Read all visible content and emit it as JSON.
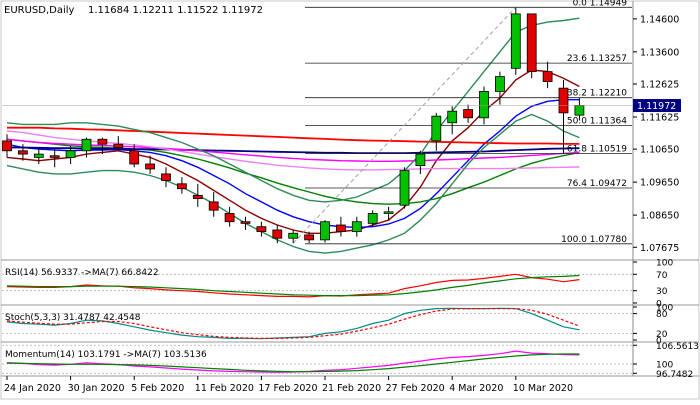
{
  "header": {
    "symbol_label": "EURUSD,Daily",
    "ohlc_label": "1.11684 1.12211 1.11522 1.11972"
  },
  "chart_data": [
    {
      "type": "candlestick",
      "symbol": "EURUSD",
      "timeframe": "Daily",
      "ylim": [
        1.0735,
        1.1505
      ],
      "y_ticks": [
        {
          "value": 1.146,
          "label": "1.14600"
        },
        {
          "value": 1.136,
          "label": "1.13600"
        },
        {
          "value": 1.12625,
          "label": "1.12625"
        },
        {
          "value": 1.11625,
          "label": "1.11625"
        },
        {
          "value": 1.1065,
          "label": "1.10650"
        },
        {
          "value": 1.0965,
          "label": "1.09650"
        },
        {
          "value": 1.0865,
          "label": "1.08650"
        },
        {
          "value": 1.07675,
          "label": "1.07675"
        }
      ],
      "x_ticks": [
        {
          "index": 0,
          "label": "24 Jan 2020"
        },
        {
          "index": 4,
          "label": "30 Jan 2020"
        },
        {
          "index": 8,
          "label": "5 Feb 2020"
        },
        {
          "index": 12,
          "label": "11 Feb 2020"
        },
        {
          "index": 16,
          "label": "17 Feb 2020"
        },
        {
          "index": 20,
          "label": "21 Feb 2020"
        },
        {
          "index": 24,
          "label": "27 Feb 2020"
        },
        {
          "index": 28,
          "label": "4 Mar 2020"
        },
        {
          "index": 32,
          "label": "10 Mar 2020"
        }
      ],
      "current_price": {
        "value": 1.11972,
        "label": "1.11972",
        "color": "#000080"
      },
      "candles": [
        {
          "o": 1.109,
          "h": 1.111,
          "l": 1.104,
          "c": 1.106
        },
        {
          "o": 1.106,
          "h": 1.108,
          "l": 1.103,
          "c": 1.105
        },
        {
          "o": 1.104,
          "h": 1.107,
          "l": 1.102,
          "c": 1.105
        },
        {
          "o": 1.1045,
          "h": 1.1065,
          "l": 1.101,
          "c": 1.104
        },
        {
          "o": 1.104,
          "h": 1.1075,
          "l": 1.102,
          "c": 1.106
        },
        {
          "o": 1.106,
          "h": 1.11,
          "l": 1.104,
          "c": 1.1095
        },
        {
          "o": 1.1095,
          "h": 1.11,
          "l": 1.105,
          "c": 1.108
        },
        {
          "o": 1.108,
          "h": 1.1105,
          "l": 1.106,
          "c": 1.107
        },
        {
          "o": 1.106,
          "h": 1.108,
          "l": 1.101,
          "c": 1.102
        },
        {
          "o": 1.102,
          "h": 1.1045,
          "l": 1.099,
          "c": 1.1005
        },
        {
          "o": 1.099,
          "h": 1.101,
          "l": 1.095,
          "c": 1.097
        },
        {
          "o": 1.096,
          "h": 1.098,
          "l": 1.093,
          "c": 1.0945
        },
        {
          "o": 1.0925,
          "h": 1.096,
          "l": 1.089,
          "c": 1.0915
        },
        {
          "o": 1.0905,
          "h": 1.0935,
          "l": 1.086,
          "c": 1.088
        },
        {
          "o": 1.087,
          "h": 1.089,
          "l": 1.083,
          "c": 1.0845
        },
        {
          "o": 1.0845,
          "h": 1.086,
          "l": 1.082,
          "c": 1.084
        },
        {
          "o": 1.083,
          "h": 1.0845,
          "l": 1.08,
          "c": 1.0815
        },
        {
          "o": 1.082,
          "h": 1.0835,
          "l": 1.078,
          "c": 1.0795
        },
        {
          "o": 1.0795,
          "h": 1.082,
          "l": 1.078,
          "c": 1.081
        },
        {
          "o": 1.0805,
          "h": 1.0815,
          "l": 1.078,
          "c": 1.079
        },
        {
          "o": 1.079,
          "h": 1.085,
          "l": 1.0782,
          "c": 1.0845
        },
        {
          "o": 1.0835,
          "h": 1.086,
          "l": 1.08,
          "c": 1.0815
        },
        {
          "o": 1.0815,
          "h": 1.086,
          "l": 1.08,
          "c": 1.0845
        },
        {
          "o": 1.084,
          "h": 1.088,
          "l": 1.083,
          "c": 1.087
        },
        {
          "o": 1.087,
          "h": 1.089,
          "l": 1.085,
          "c": 1.0875
        },
        {
          "o": 1.0895,
          "h": 1.101,
          "l": 1.0885,
          "c": 1.1
        },
        {
          "o": 1.1015,
          "h": 1.106,
          "l": 1.099,
          "c": 1.105
        },
        {
          "o": 1.109,
          "h": 1.1175,
          "l": 1.106,
          "c": 1.1165
        },
        {
          "o": 1.1145,
          "h": 1.1195,
          "l": 1.111,
          "c": 1.118
        },
        {
          "o": 1.1185,
          "h": 1.12,
          "l": 1.1145,
          "c": 1.116
        },
        {
          "o": 1.116,
          "h": 1.1255,
          "l": 1.114,
          "c": 1.124
        },
        {
          "o": 1.124,
          "h": 1.13,
          "l": 1.12,
          "c": 1.1285
        },
        {
          "o": 1.131,
          "h": 1.1495,
          "l": 1.129,
          "c": 1.1475
        },
        {
          "o": 1.1475,
          "h": 1.1475,
          "l": 1.128,
          "c": 1.13
        },
        {
          "o": 1.13,
          "h": 1.133,
          "l": 1.125,
          "c": 1.127
        },
        {
          "o": 1.125,
          "h": 1.1275,
          "l": 1.105,
          "c": 1.1175
        },
        {
          "o": 1.1168,
          "h": 1.1221,
          "l": 1.1152,
          "c": 1.1197
        }
      ],
      "fibonacci": {
        "color": "#222222",
        "levels": [
          {
            "value": 1.14949,
            "label": "0.0 1.14949"
          },
          {
            "value": 1.13257,
            "label": "23.6 1.13257"
          },
          {
            "value": 1.1221,
            "label": "38.2 1.12210"
          },
          {
            "value": 1.11364,
            "label": "50.0 1.11364"
          },
          {
            "value": 1.10519,
            "label": "61.8 1.10519"
          },
          {
            "value": 1.09472,
            "label": "76.4 1.09472"
          },
          {
            "value": 1.0778,
            "label": "100.0 1.07780"
          }
        ]
      },
      "moving_averages": [
        {
          "color": "#8b0000",
          "values": [
            1.104,
            1.1035,
            1.103,
            1.1035,
            1.104,
            1.105,
            1.1055,
            1.106,
            1.105,
            1.104,
            1.102,
            1.0995,
            1.097,
            1.094,
            1.091,
            1.088,
            1.0855,
            1.0835,
            1.082,
            1.081,
            1.081,
            1.0815,
            1.082,
            1.0835,
            1.085,
            1.089,
            1.095,
            1.103,
            1.109,
            1.113,
            1.118,
            1.122,
            1.1275,
            1.1305,
            1.13,
            1.128,
            1.1255
          ]
        },
        {
          "color": "#0000ff",
          "values": [
            1.108,
            1.107,
            1.1065,
            1.1062,
            1.106,
            1.1062,
            1.1062,
            1.1064,
            1.106,
            1.1055,
            1.1045,
            1.103,
            1.101,
            1.0985,
            1.096,
            1.093,
            1.0905,
            1.088,
            1.086,
            1.0845,
            1.0835,
            1.083,
            1.0828,
            1.083,
            1.0838,
            1.0855,
            1.0885,
            1.093,
            1.098,
            1.103,
            1.108,
            1.112,
            1.1165,
            1.1195,
            1.121,
            1.1215,
            1.1215
          ]
        },
        {
          "color": "#008000",
          "values": [
            1.1095,
            1.109,
            1.1085,
            1.108,
            1.1075,
            1.1072,
            1.107,
            1.1068,
            1.1065,
            1.1062,
            1.1055,
            1.1045,
            1.1035,
            1.1022,
            1.1008,
            1.0992,
            1.0978,
            1.0962,
            1.0948,
            1.0935,
            1.0922,
            1.0912,
            1.0905,
            1.09,
            1.0898,
            1.09,
            1.0905,
            1.0915,
            1.093,
            1.0948,
            1.0965,
            1.0985,
            1.1005,
            1.1022,
            1.1035,
            1.1045,
            1.1055
          ]
        },
        {
          "color": "#ff0000",
          "values": [
            1.113,
            1.113,
            1.113,
            1.1128,
            1.1127,
            1.1125,
            1.1124,
            1.1122,
            1.112,
            1.1118,
            1.1116,
            1.1114,
            1.1112,
            1.111,
            1.1108,
            1.1106,
            1.1104,
            1.1102,
            1.11,
            1.1098,
            1.1096,
            1.1094,
            1.1092,
            1.1091,
            1.109,
            1.1089,
            1.1088,
            1.1087,
            1.1086,
            1.1085,
            1.1084,
            1.1083,
            1.1082,
            1.1082,
            1.1082,
            1.1081,
            1.1081
          ]
        },
        {
          "color": "#000080",
          "values": [
            1.107,
            1.107,
            1.1069,
            1.1068,
            1.1068,
            1.1067,
            1.1066,
            1.1066,
            1.1065,
            1.1065,
            1.1064,
            1.1063,
            1.1062,
            1.1061,
            1.106,
            1.1059,
            1.1058,
            1.1057,
            1.1056,
            1.1055,
            1.1054,
            1.1054,
            1.1053,
            1.1053,
            1.1053,
            1.1053,
            1.1054,
            1.1055,
            1.1056,
            1.1057,
            1.1058,
            1.106,
            1.1062,
            1.1064,
            1.1066,
            1.1067,
            1.1068
          ]
        },
        {
          "color": "#ff00ff",
          "values": [
            1.1095,
            1.109,
            1.1085,
            1.1082,
            1.108,
            1.1078,
            1.1076,
            1.1074,
            1.1072,
            1.107,
            1.1067,
            1.1064,
            1.106,
            1.1056,
            1.1052,
            1.1048,
            1.1044,
            1.104,
            1.1037,
            1.1034,
            1.1032,
            1.103,
            1.1029,
            1.1028,
            1.1028,
            1.1029,
            1.103,
            1.1032,
            1.1034,
            1.1036,
            1.1038,
            1.104,
            1.1043,
            1.1046,
            1.1049,
            1.1052,
            1.1055
          ]
        },
        {
          "color": "#ee82ee",
          "values": [
            1.112,
            1.1115,
            1.1108,
            1.11,
            1.1095,
            1.109,
            1.1086,
            1.1082,
            1.1078,
            1.1072,
            1.1065,
            1.1058,
            1.105,
            1.1042,
            1.1035,
            1.1028,
            1.1022,
            1.1016,
            1.1012,
            1.1008,
            1.1005,
            1.1003,
            1.1002,
            1.1002,
            1.1003,
            1.1004,
            1.1005,
            1.1006,
            1.1006,
            1.1006,
            1.1006,
            1.1006,
            1.1007,
            1.1008,
            1.1009,
            1.101,
            1.1011
          ]
        },
        {
          "color": "#2e8b57",
          "values": [
            1.1145,
            1.114,
            1.114,
            1.114,
            1.1145,
            1.1145,
            1.114,
            1.1135,
            1.1125,
            1.1115,
            1.11,
            1.1085,
            1.1065,
            1.1045,
            1.102,
            1.0995,
            1.097,
            1.0945,
            1.0925,
            1.091,
            1.0905,
            1.091,
            1.092,
            1.094,
            1.096,
            1.1,
            1.105,
            1.112,
            1.118,
            1.124,
            1.13,
            1.136,
            1.142,
            1.144,
            1.145,
            1.1455,
            1.1462
          ]
        },
        {
          "color": "#2e8b57",
          "values": [
            1.1015,
            1.1005,
            1.0995,
            1.099,
            1.099,
            1.0995,
            1.1,
            1.1,
            1.0995,
            1.0985,
            1.097,
            1.095,
            1.0925,
            1.09,
            1.087,
            1.084,
            1.0815,
            1.079,
            1.077,
            1.0755,
            1.075,
            1.0755,
            1.0765,
            1.0775,
            1.079,
            1.081,
            1.085,
            1.09,
            1.096,
            1.102,
            1.107,
            1.111,
            1.115,
            1.117,
            1.115,
            1.112,
            1.11
          ]
        }
      ],
      "trendline": {
        "color": "#a0a0a0",
        "from": {
          "index": 18,
          "value": 1.078
        },
        "to": {
          "index": 32,
          "value": 1.1495
        }
      }
    },
    {
      "type": "line",
      "label": "RSI(14) 56.9337   ->MA(7) 66.8422",
      "ylim": [
        0,
        100
      ],
      "y_ticks": [
        {
          "value": 100,
          "label": "100"
        },
        {
          "value": 70,
          "label": "70"
        },
        {
          "value": 30,
          "label": "30"
        },
        {
          "value": 0,
          "label": "0"
        }
      ],
      "series": [
        {
          "color": "#ff0000",
          "values": [
            40,
            39,
            38,
            38,
            40,
            44,
            42,
            41,
            37,
            35,
            32,
            30,
            28,
            25,
            22,
            20,
            18,
            16,
            16,
            15,
            18,
            17,
            20,
            22,
            24,
            35,
            42,
            50,
            55,
            56,
            60,
            65,
            70,
            62,
            58,
            52,
            57
          ]
        },
        {
          "color": "#008000",
          "values": [
            42,
            41,
            40,
            40,
            40,
            41,
            41,
            41,
            40,
            39,
            37,
            35,
            33,
            30,
            28,
            26,
            24,
            22,
            20,
            19,
            18,
            18,
            18,
            19,
            20,
            23,
            27,
            32,
            38,
            43,
            49,
            54,
            59,
            62,
            64,
            65,
            67
          ]
        }
      ]
    },
    {
      "type": "line",
      "label": "Stoch(5,3,3) 31.4787 42.4548",
      "ylim": [
        0,
        100
      ],
      "y_ticks": [
        {
          "value": 100,
          "label": "100"
        },
        {
          "value": 80,
          "label": "80"
        },
        {
          "value": 20,
          "label": "20"
        },
        {
          "value": 0,
          "label": "0"
        }
      ],
      "series": [
        {
          "color": "#008b8b",
          "values": [
            55,
            50,
            48,
            45,
            50,
            60,
            58,
            50,
            40,
            30,
            22,
            15,
            10,
            8,
            5,
            5,
            4,
            6,
            8,
            10,
            20,
            25,
            35,
            50,
            60,
            80,
            90,
            95,
            96,
            95,
            95,
            96,
            95,
            80,
            60,
            40,
            31
          ]
        },
        {
          "color": "#ff0000",
          "dash": "3,2",
          "values": [
            58,
            54,
            51,
            48,
            48,
            52,
            56,
            56,
            50,
            40,
            31,
            22,
            16,
            11,
            8,
            6,
            5,
            5,
            6,
            8,
            13,
            18,
            27,
            37,
            48,
            63,
            77,
            88,
            94,
            95,
            95,
            95,
            95,
            90,
            78,
            60,
            42
          ]
        }
      ]
    },
    {
      "type": "line",
      "label": "Momentum(14) 103.1791   ->MA(7) 103.5136",
      "ylim": [
        96.5,
        107
      ],
      "y_ticks": [
        {
          "value": 106.5613,
          "label": "106.5613"
        },
        {
          "value": 100.0,
          "label": "100"
        },
        {
          "value": 96.7482,
          "label": "96.7482"
        }
      ],
      "series": [
        {
          "color": "#ff00ff",
          "values": [
            100.5,
            100.2,
            99.8,
            99.6,
            99.9,
            100.4,
            100.1,
            99.8,
            99.3,
            99.0,
            98.6,
            98.2,
            97.9,
            97.6,
            97.4,
            97.3,
            97.2,
            97.1,
            97.2,
            97.4,
            97.8,
            98.0,
            98.5,
            99.0,
            99.5,
            100.3,
            101.0,
            101.8,
            102.3,
            102.6,
            103.0,
            103.6,
            104.5,
            103.8,
            103.6,
            103.3,
            103.2
          ]
        },
        {
          "color": "#008000",
          "values": [
            100.3,
            100.2,
            100.1,
            100.0,
            99.9,
            99.9,
            99.9,
            99.8,
            99.7,
            99.5,
            99.3,
            99.0,
            98.7,
            98.4,
            98.1,
            97.8,
            97.6,
            97.4,
            97.3,
            97.3,
            97.4,
            97.5,
            97.7,
            98.0,
            98.4,
            98.9,
            99.4,
            100.0,
            100.6,
            101.2,
            101.8,
            102.3,
            102.8,
            103.2,
            103.4,
            103.5,
            103.5
          ]
        }
      ]
    }
  ]
}
